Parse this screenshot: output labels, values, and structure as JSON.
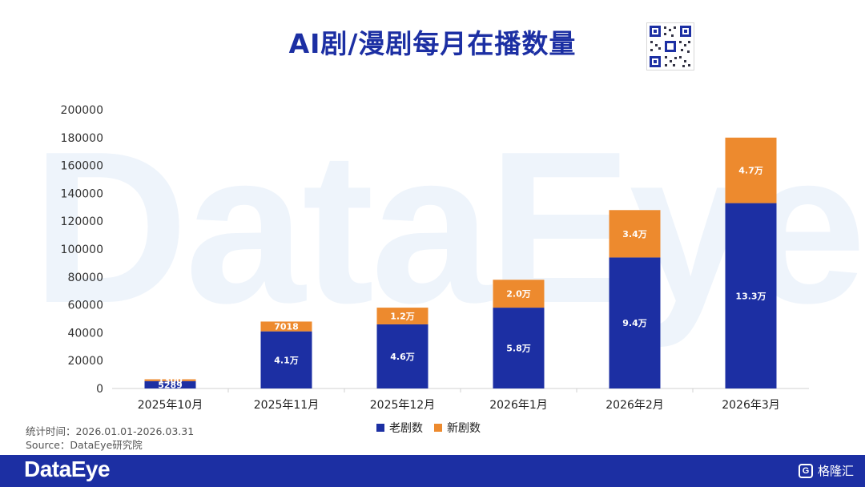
{
  "page": {
    "title": "AI剧/漫剧每月在播数量",
    "watermark_text": "DataEye",
    "legend": [
      {
        "label": "老剧数",
        "color": "#1c2fa3"
      },
      {
        "label": "新剧数",
        "color": "#ed8a2e"
      }
    ],
    "footnote_period": "统计时间：2026.01.01-2026.03.31",
    "footnote_source": "Source：DataEye研究院",
    "footer_logo": "DataEye",
    "footer_right": "格隆汇",
    "footer_right_icon": "G"
  },
  "colors": {
    "old": "#1c2fa3",
    "new": "#ed8a2e",
    "title": "#1c2fa3",
    "footer": "#1c2fa3"
  },
  "chart_data": {
    "type": "bar",
    "stacked": true,
    "title": "AI剧/漫剧每月在播数量",
    "categories": [
      "2025年10月",
      "2025年11月",
      "2025年12月",
      "2026年1月",
      "2026年2月",
      "2026年3月"
    ],
    "series": [
      {
        "name": "老剧数",
        "values": [
          5289,
          41000,
          46000,
          58000,
          94000,
          133000
        ],
        "labels": [
          "5289",
          "4.1万",
          "4.6万",
          "5.8万",
          "9.4万",
          "13.3万"
        ]
      },
      {
        "name": "新剧数",
        "values": [
          1300,
          7018,
          12000,
          20000,
          34000,
          47000
        ],
        "labels": [
          "1300",
          "7018",
          "1.2万",
          "2.0万",
          "3.4万",
          "4.7万"
        ]
      }
    ],
    "ylim": [
      0,
      200000
    ],
    "yticks": [
      0,
      20000,
      40000,
      60000,
      80000,
      100000,
      120000,
      140000,
      160000,
      180000,
      200000
    ],
    "xlabel": "",
    "ylabel": "",
    "grid": false,
    "legend_position": "bottom"
  }
}
